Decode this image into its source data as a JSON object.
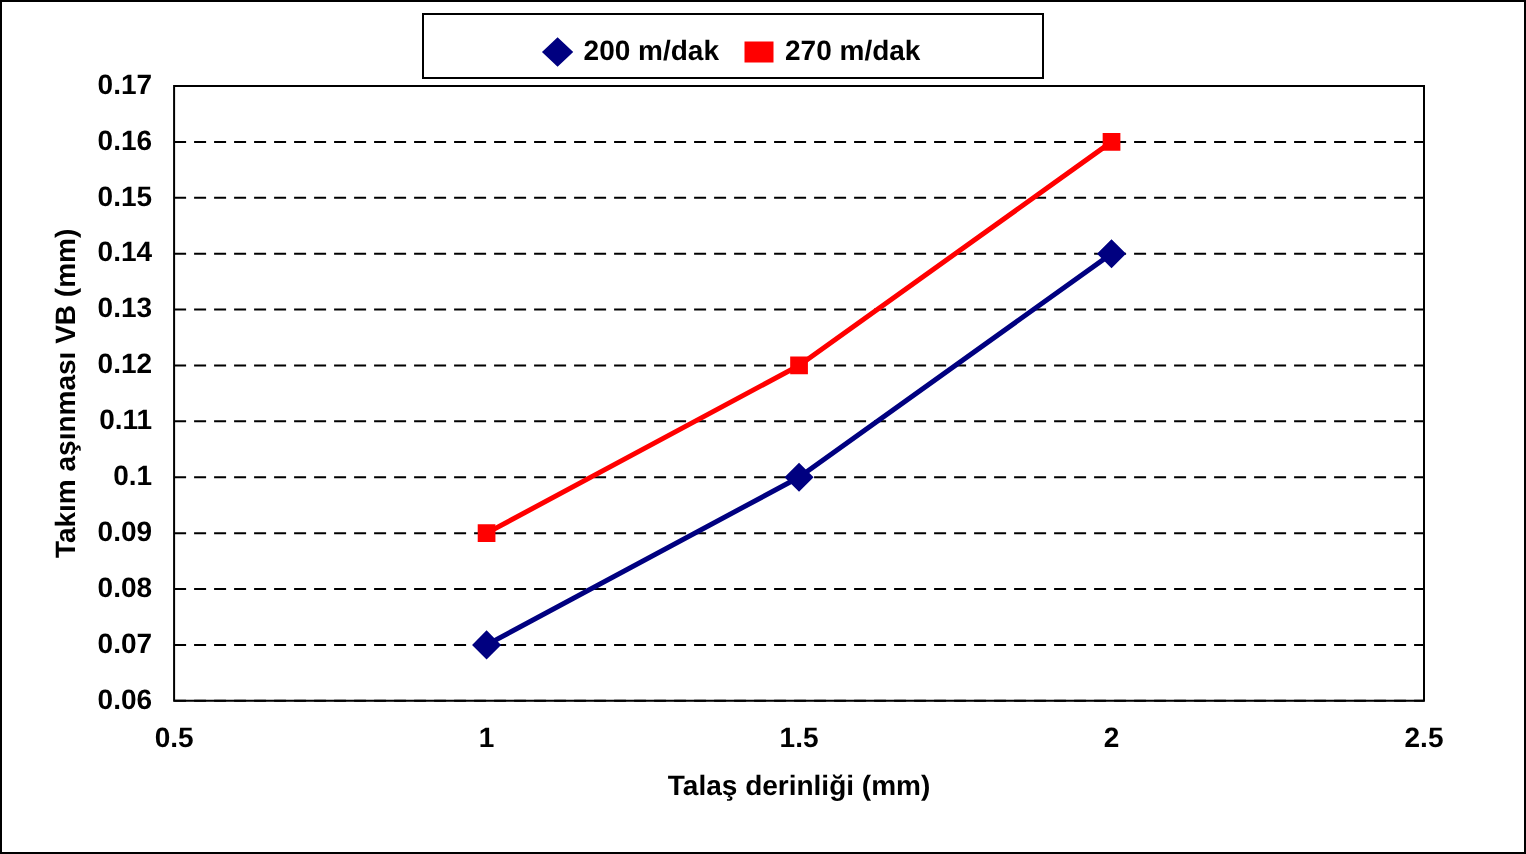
{
  "chart_data": {
    "type": "line",
    "xlabel": "Talaş derinliği (mm)",
    "ylabel": "Takım aşınması VB (mm)",
    "x": [
      1,
      1.5,
      2
    ],
    "series": [
      {
        "name": "200 m/dak",
        "color": "#000080",
        "values": [
          0.07,
          0.1,
          0.14
        ],
        "marker": "diamond"
      },
      {
        "name": "270 m/dak",
        "color": "#ff0000",
        "values": [
          0.09,
          0.12,
          0.16
        ],
        "marker": "square"
      }
    ],
    "xlim": [
      0.5,
      2.5
    ],
    "xticks": [
      0.5,
      1,
      1.5,
      2,
      2.5
    ],
    "ylim": [
      0.06,
      0.17
    ],
    "yticks": [
      0.06,
      0.07,
      0.08,
      0.09,
      0.1,
      0.11,
      0.12,
      0.13,
      0.14,
      0.15,
      0.16,
      0.17
    ],
    "grid": "y",
    "legend": "top",
    "line_style": "solid"
  }
}
